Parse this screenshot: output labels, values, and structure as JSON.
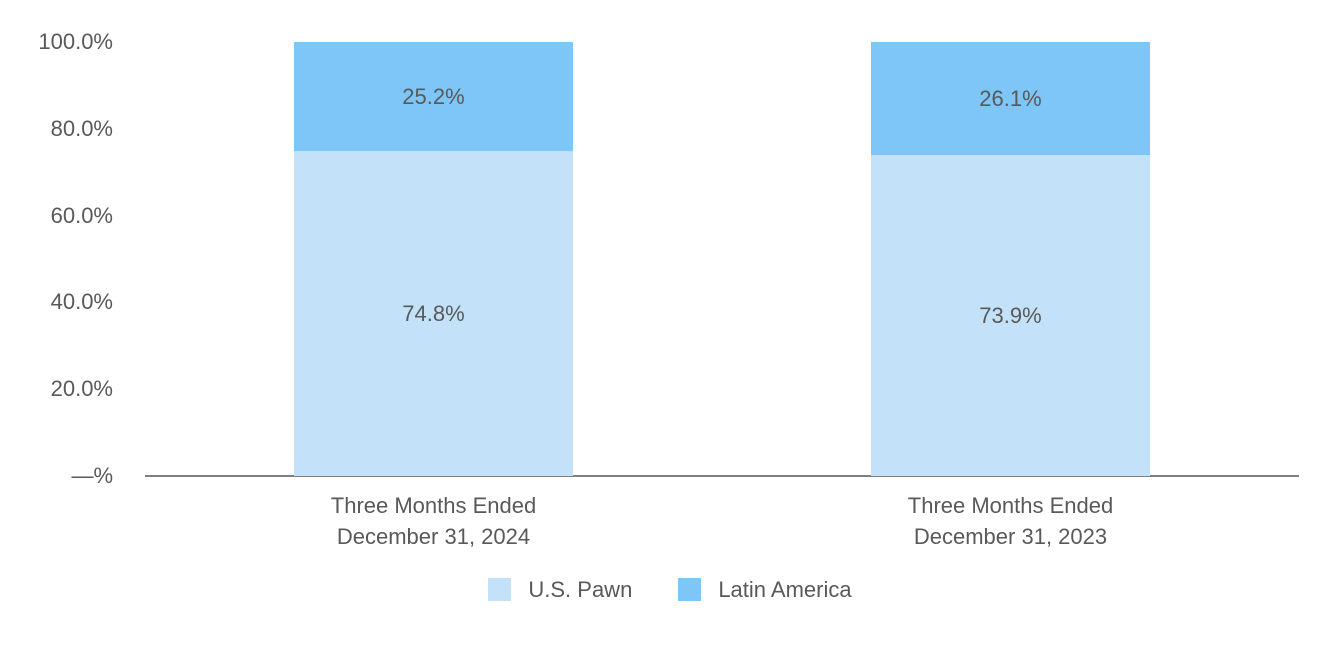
{
  "colors": {
    "us_pawn": "#C3E2FA",
    "latin_america": "#7FC6F8",
    "label_text": "#595959",
    "axis_line": "#7F7F7F",
    "background": "#FFFFFF"
  },
  "chart_data": {
    "type": "bar",
    "stacked": true,
    "title": "",
    "xlabel": "",
    "ylabel": "",
    "ylim": [
      0,
      100
    ],
    "grid": false,
    "legend_position": "bottom",
    "categories": [
      [
        "Three Months Ended",
        "December 31, 2024"
      ],
      [
        "Three Months Ended",
        "December 31, 2023"
      ]
    ],
    "series": [
      {
        "name": "U.S. Pawn",
        "color": "#C3E2FA",
        "values": [
          74.8,
          73.9
        ],
        "labels": [
          "74.8%",
          "73.9%"
        ]
      },
      {
        "name": "Latin America",
        "color": "#7FC6F8",
        "values": [
          25.2,
          26.1
        ],
        "labels": [
          "25.2%",
          "26.1%"
        ]
      }
    ],
    "y_ticks": [
      {
        "value": 100,
        "label": "100.0%"
      },
      {
        "value": 80,
        "label": "80.0%"
      },
      {
        "value": 60,
        "label": "60.0%"
      },
      {
        "value": 40,
        "label": "40.0%"
      },
      {
        "value": 20,
        "label": "20.0%"
      },
      {
        "value": 0,
        "label": "—%"
      }
    ],
    "legend": [
      {
        "name": "U.S. Pawn",
        "color": "#C3E2FA"
      },
      {
        "name": "Latin America",
        "color": "#7FC6F8"
      }
    ]
  }
}
